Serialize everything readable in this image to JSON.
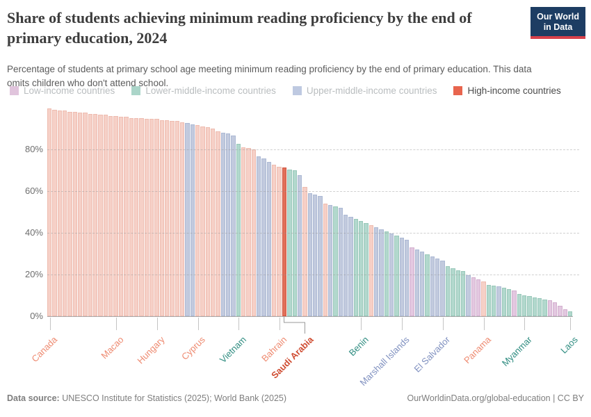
{
  "header": {
    "title": "Share of students achieving minimum reading proficiency by the end of primary education, 2024",
    "subtitle": "Percentage of students at primary school age meeting minimum reading proficiency by the end of primary education. This data omits children who don't attend school.",
    "logo_line1": "Our World",
    "logo_line2": "in Data",
    "logo_bg": "#1d3d63",
    "logo_accent": "#d8414b"
  },
  "legend": {
    "items": [
      {
        "label": "Low-income countries",
        "swatch": "#e0c4dc",
        "muted": true
      },
      {
        "label": "Lower-middle-income countries",
        "swatch": "#abd5c9",
        "muted": true
      },
      {
        "label": "Upper-middle-income countries",
        "swatch": "#bec9e1",
        "muted": true
      },
      {
        "label": "High-income countries",
        "swatch": "#e8654e",
        "muted": false
      }
    ]
  },
  "footer": {
    "source_label": "Data source:",
    "source_text": " UNESCO Institute for Statistics (2025); World Bank (2025)",
    "right_text": "OurWorldinData.org/global-education | CC BY"
  },
  "chart_data": {
    "type": "bar",
    "title": "Share of students achieving minimum reading proficiency by the end of primary education, 2024",
    "ylabel": "",
    "ylim": [
      0,
      100
    ],
    "y_ticks": [
      0,
      20,
      40,
      60,
      80
    ],
    "y_tick_suffix": "%",
    "grid": "horizontal-dashed",
    "legend_position": "top",
    "category_names": {
      "h": "High-income countries",
      "H": "High-income countries (highlighted: Saudi Arabia)",
      "u": "Upper-middle-income countries",
      "l": "Lower-middle-income countries",
      "w": "Low-income countries"
    },
    "styles": {
      "h": {
        "fill": "#f6d0c7",
        "border": "#eebcb0",
        "label": "#ee8a70"
      },
      "H": {
        "fill": "#e1705a",
        "border": "#d2543e",
        "label": "#cf4c31"
      },
      "u": {
        "fill": "#c2cade",
        "border": "#acb9d4",
        "label": "#8091c0"
      },
      "l": {
        "fill": "#b2d8cd",
        "border": "#99c8ba",
        "label": "#2e8c80"
      },
      "w": {
        "fill": "#e3c8e0",
        "border": "#d2afce",
        "label": "#c79cc0"
      }
    },
    "values": [
      99.5,
      99,
      98.5,
      98.5,
      98,
      98,
      97.5,
      97.5,
      97,
      97,
      96.5,
      96.5,
      96,
      96,
      95.5,
      95.5,
      95,
      95,
      95,
      94.5,
      94.5,
      94.5,
      94,
      94,
      93.5,
      93.5,
      93,
      92.5,
      92,
      91.5,
      91,
      90.5,
      90,
      88.5,
      88,
      87.5,
      86.5,
      82.5,
      81,
      80.5,
      80,
      76.5,
      75.5,
      74,
      72.5,
      71.8,
      71.3,
      70.3,
      70,
      67.5,
      62,
      59,
      58.2,
      57.5,
      54,
      53.2,
      52.6,
      52,
      48.5,
      47.5,
      46.5,
      45.5,
      44.5,
      43.5,
      42.8,
      41.5,
      40.6,
      39.8,
      38.5,
      37.5,
      36.5,
      33,
      32,
      31,
      29.5,
      28.5,
      27.5,
      26.5,
      24,
      23,
      22,
      21.5,
      19.5,
      18.5,
      17.7,
      16.8,
      15,
      14.6,
      14.2,
      13.5,
      13.1,
      12.4,
      10.5,
      10.1,
      9.6,
      9,
      8.6,
      8.1,
      7.7,
      6.6,
      4.9,
      3.4,
      2.2
    ],
    "categories": [
      "h",
      "h",
      "h",
      "h",
      "h",
      "h",
      "h",
      "h",
      "h",
      "h",
      "h",
      "h",
      "h",
      "h",
      "h",
      "h",
      "h",
      "h",
      "h",
      "h",
      "h",
      "h",
      "h",
      "h",
      "h",
      "h",
      "h",
      "u",
      "u",
      "h",
      "h",
      "h",
      "h",
      "h",
      "u",
      "u",
      "u",
      "l",
      "h",
      "h",
      "h",
      "u",
      "u",
      "u",
      "h",
      "h",
      "H",
      "l",
      "l",
      "u",
      "h",
      "u",
      "u",
      "u",
      "h",
      "u",
      "l",
      "u",
      "u",
      "u",
      "l",
      "l",
      "l",
      "h",
      "u",
      "u",
      "l",
      "u",
      "l",
      "u",
      "u",
      "w",
      "u",
      "u",
      "l",
      "u",
      "u",
      "u",
      "l",
      "l",
      "l",
      "l",
      "u",
      "w",
      "w",
      "h",
      "l",
      "l",
      "u",
      "l",
      "l",
      "w",
      "l",
      "l",
      "l",
      "l",
      "l",
      "l",
      "w",
      "w",
      "w",
      "w",
      "l"
    ],
    "x_tick_labels": [
      {
        "label": "Canada",
        "bar": 1,
        "cat": "h"
      },
      {
        "label": "Macao",
        "bar": 14,
        "cat": "h"
      },
      {
        "label": "Hungary",
        "bar": 22,
        "cat": "h"
      },
      {
        "label": "Cyprus",
        "bar": 30,
        "cat": "h"
      },
      {
        "label": "Vietnam",
        "bar": 38,
        "cat": "l"
      },
      {
        "label": "Bahrain",
        "bar": 46,
        "cat": "h"
      },
      {
        "label": "Saudi Arabia",
        "bar": 47,
        "cat": "H",
        "bold": true,
        "bracket": true
      },
      {
        "label": "Benin",
        "bar": 62,
        "cat": "l"
      },
      {
        "label": "Marshall Islands",
        "bar": 70,
        "cat": "u"
      },
      {
        "label": "El Salvador",
        "bar": 78,
        "cat": "u"
      },
      {
        "label": "Panama",
        "bar": 86,
        "cat": "h"
      },
      {
        "label": "Myanmar",
        "bar": 94,
        "cat": "l"
      },
      {
        "label": "Laos",
        "bar": 103,
        "cat": "l"
      }
    ]
  }
}
